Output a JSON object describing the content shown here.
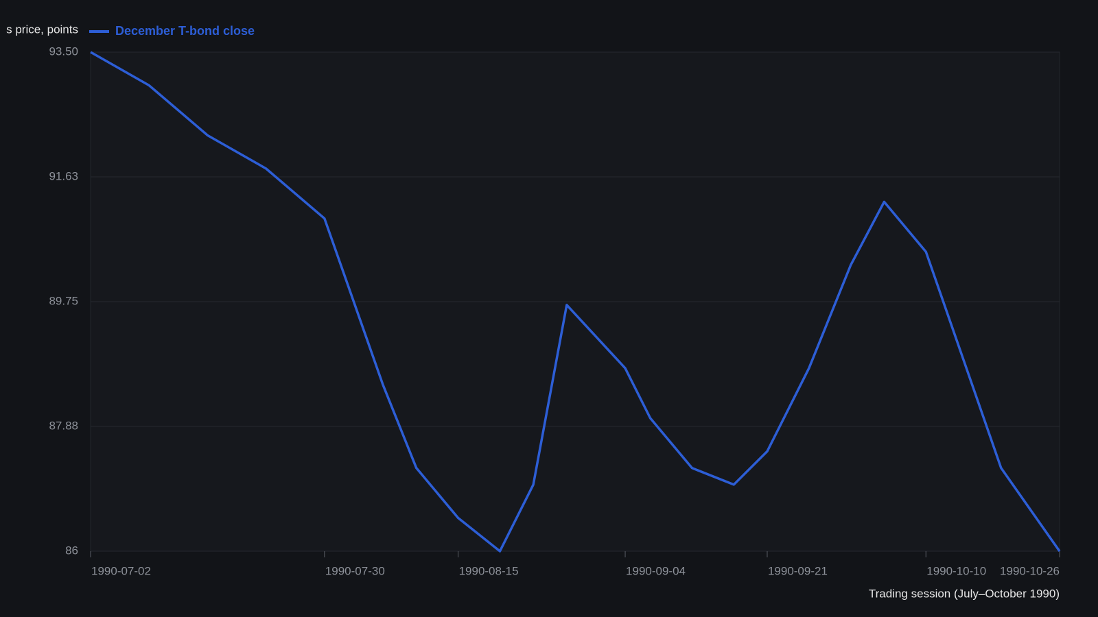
{
  "chart_data": {
    "type": "line",
    "ylabel": "s price, points",
    "xlabel": "Trading session (July–October 1990)",
    "x": [
      "1990-07-02",
      "1990-07-09",
      "1990-07-16",
      "1990-07-23",
      "1990-07-30",
      "1990-08-06",
      "1990-08-10",
      "1990-08-15",
      "1990-08-20",
      "1990-08-24",
      "1990-08-28",
      "1990-09-04",
      "1990-09-07",
      "1990-09-12",
      "1990-09-17",
      "1990-09-21",
      "1990-09-26",
      "1990-10-01",
      "1990-10-05",
      "1990-10-10",
      "1990-10-19",
      "1990-10-26"
    ],
    "series": [
      {
        "name": "December T-bond close",
        "color": "#2d5ed6",
        "values": [
          93.5,
          93.0,
          92.25,
          91.75,
          91.0,
          88.5,
          87.25,
          86.5,
          86.0,
          87.0,
          89.7,
          88.75,
          88.0,
          87.25,
          87.0,
          87.5,
          88.75,
          90.3,
          91.25,
          90.5,
          87.25,
          86.0
        ]
      }
    ],
    "xlim": [
      "1990-07-02",
      "1990-10-26"
    ],
    "xticks": [
      "1990-07-02",
      "1990-07-30",
      "1990-08-15",
      "1990-09-04",
      "1990-09-21",
      "1990-10-10",
      "1990-10-26"
    ],
    "ylim": [
      86,
      93.5
    ],
    "yticks": [
      86,
      {
        "value": 87.875,
        "label": "87.88"
      },
      89.75,
      {
        "value": 91.625,
        "label": "91.63"
      },
      {
        "value": 93.5,
        "label": "93.50"
      }
    ],
    "grid": true
  }
}
